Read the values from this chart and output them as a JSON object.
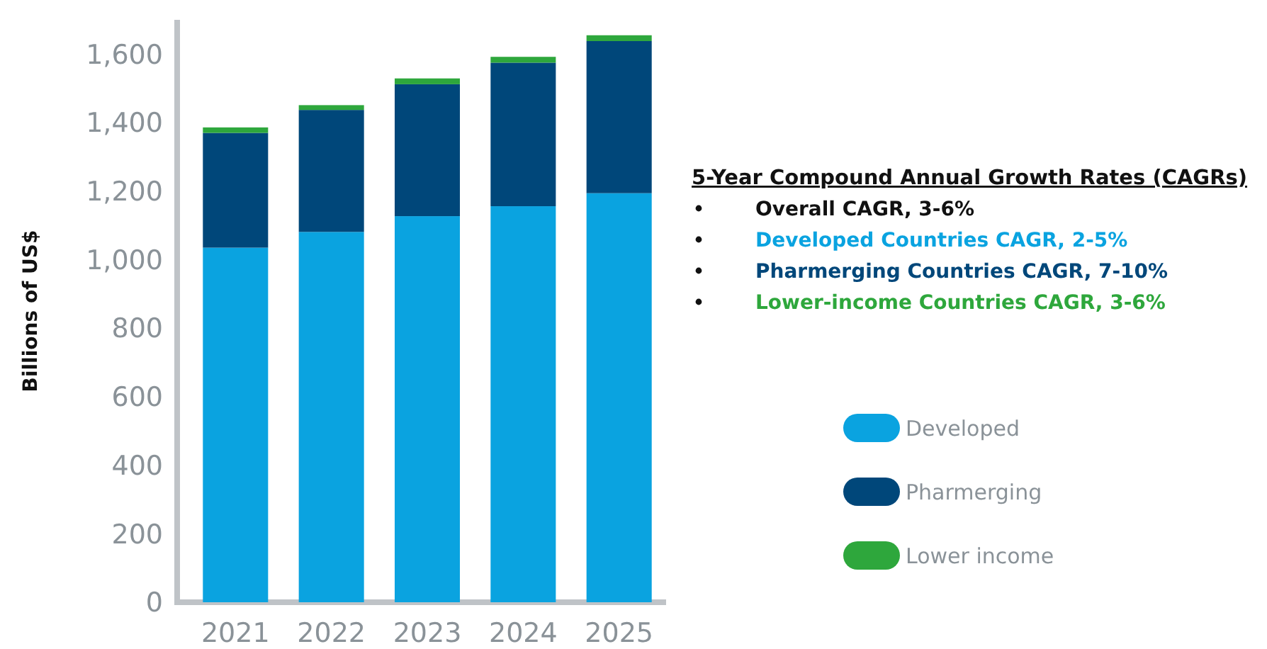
{
  "chart_data": {
    "type": "bar",
    "stacked": true,
    "ylabel": "Billions of US$",
    "categories": [
      "2021",
      "2022",
      "2023",
      "2024",
      "2025"
    ],
    "series": [
      {
        "name": "Developed",
        "color": "#0aa3e0",
        "values": [
          1035,
          1081,
          1127,
          1156,
          1194
        ]
      },
      {
        "name": "Pharmerging",
        "color": "#00477a",
        "values": [
          335,
          356,
          385,
          419,
          444
        ]
      },
      {
        "name": "Lower income",
        "color": "#2ea73c",
        "values": [
          16,
          14,
          17,
          17,
          17
        ]
      }
    ],
    "ylim": [
      0,
      1700
    ],
    "yticks": [
      0,
      200,
      400,
      600,
      800,
      {
        "value": 1000,
        "label": "1,000"
      },
      {
        "value": 1200,
        "label": "1,200"
      },
      {
        "value": 1400,
        "label": "1,400"
      },
      {
        "value": 1600,
        "label": "1,600"
      }
    ],
    "grid": false,
    "legend": "right",
    "annotations": [
      "5-Year Compound Annual Growth Rates (CAGRs)",
      "Overall CAGR, 3-6%",
      "Developed Countries CAGR, 2-5%",
      "Pharmerging Countries CAGR, 7-10%",
      "Lower-income Countries CAGR, 3-6%"
    ]
  }
}
